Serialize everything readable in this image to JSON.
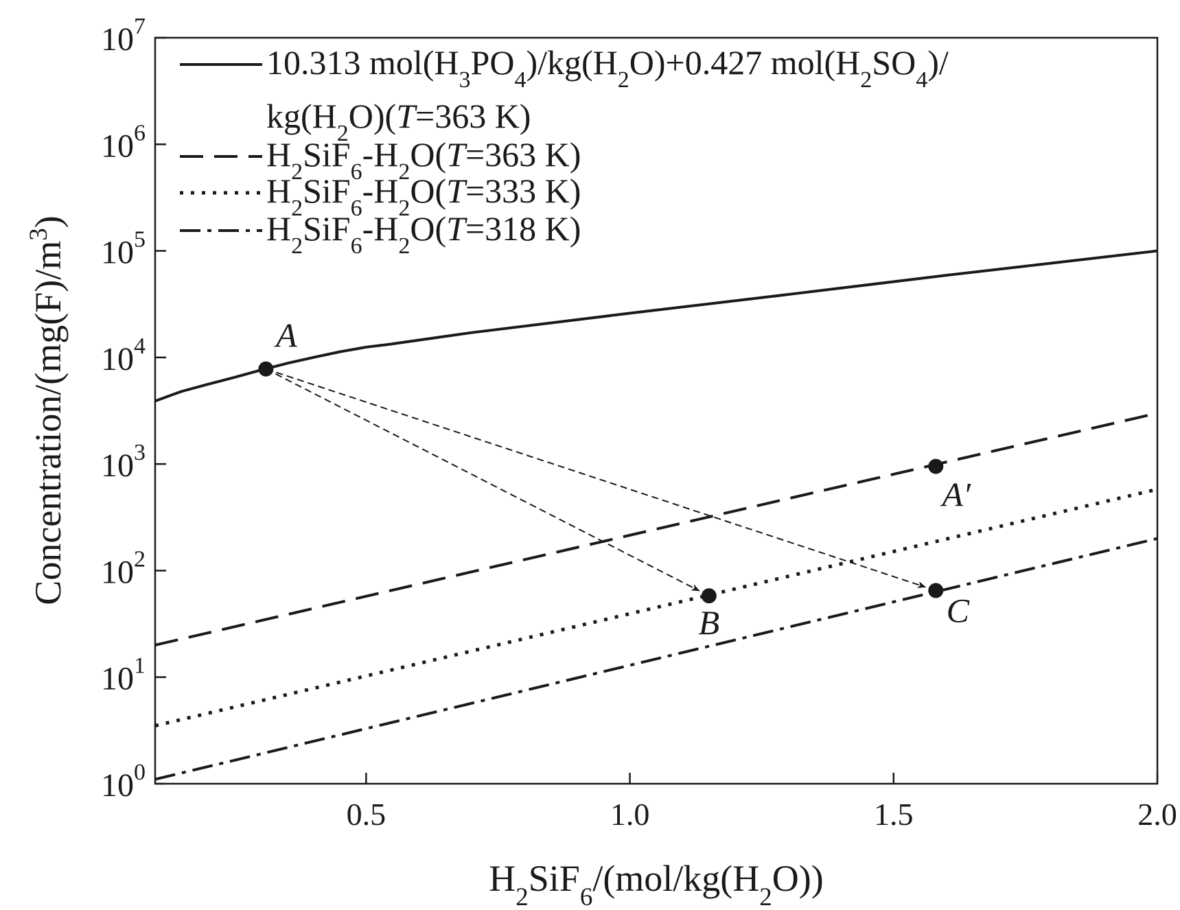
{
  "chart_data": {
    "type": "line",
    "xlabel": "H2SiF6/(mol/kg(H2O))",
    "ylabel": "Concentration/(mg(F)/m3)",
    "xlim": [
      0.1,
      2.0
    ],
    "ylim": [
      1,
      10000000
    ],
    "yscale": "log",
    "grid": false,
    "legend_position": "top-left",
    "x_ticks": [
      0.5,
      1.0,
      1.5,
      2.0
    ],
    "x_tick_labels": [
      "0.5",
      "1.0",
      "1.5",
      "2.0"
    ],
    "y_ticks": [
      1,
      10,
      100,
      1000,
      10000,
      100000,
      1000000,
      10000000
    ],
    "y_tick_exponents": [
      "0",
      "1",
      "2",
      "3",
      "4",
      "5",
      "6",
      "7"
    ],
    "series": [
      {
        "name": "10.313 mol(H3PO4)/kg(H2O)+0.427 mol(H2SO4)/kg(H2O)(T=363 K)",
        "style": "solid",
        "x": [
          0.1,
          0.15,
          0.2,
          0.25,
          0.3,
          0.35,
          0.4,
          0.45,
          0.5,
          0.54,
          0.7,
          1.0,
          1.3,
          1.6,
          2.0
        ],
        "y": [
          3900,
          4800,
          5600,
          6500,
          7600,
          8800,
          10000,
          11300,
          12500,
          13200,
          17100,
          26000,
          39000,
          59000,
          100000
        ]
      },
      {
        "name": "H2SiF6-H2O(T=363 K)",
        "style": "dashed",
        "x": [
          0.1,
          2.0
        ],
        "y": [
          20,
          3000
        ]
      },
      {
        "name": "H2SiF6-H2O(T=333 K)",
        "style": "dotted",
        "x": [
          0.1,
          2.0
        ],
        "y": [
          3.5,
          580
        ]
      },
      {
        "name": "H2SiF6-H2O(T=318 K)",
        "style": "dash-dot",
        "x": [
          0.1,
          2.0
        ],
        "y": [
          1.1,
          200
        ]
      }
    ],
    "points": [
      {
        "label": "A",
        "x": 0.31,
        "y": 7800
      },
      {
        "label": "A′",
        "x": 1.58,
        "y": 950
      },
      {
        "label": "B",
        "x": 1.15,
        "y": 58
      },
      {
        "label": "C",
        "x": 1.58,
        "y": 65
      }
    ],
    "arrows": [
      {
        "from": "A",
        "to": "B"
      },
      {
        "from": "A",
        "to": "C"
      }
    ],
    "colors": {
      "line": "#1a1a1a",
      "background": "#ffffff"
    }
  }
}
